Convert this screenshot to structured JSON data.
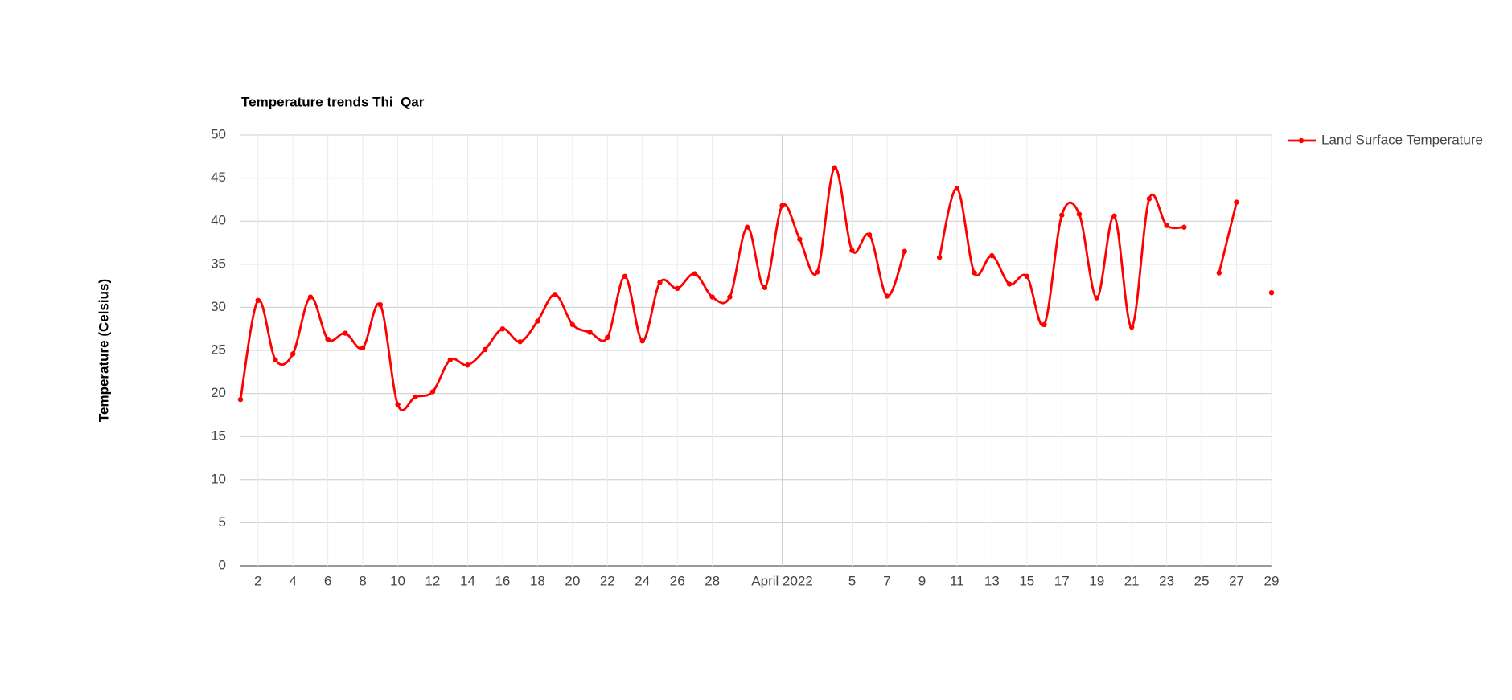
{
  "chart_data": {
    "type": "line",
    "title": "Temperature trends Thi_Qar",
    "y_label": "Temperature (Celsius)",
    "x": [
      "2022-03-01",
      "2022-03-02",
      "2022-03-03",
      "2022-03-04",
      "2022-03-05",
      "2022-03-06",
      "2022-03-07",
      "2022-03-08",
      "2022-03-09",
      "2022-03-10",
      "2022-03-11",
      "2022-03-12",
      "2022-03-13",
      "2022-03-14",
      "2022-03-15",
      "2022-03-16",
      "2022-03-17",
      "2022-03-18",
      "2022-03-19",
      "2022-03-20",
      "2022-03-21",
      "2022-03-22",
      "2022-03-23",
      "2022-03-24",
      "2022-03-25",
      "2022-03-26",
      "2022-03-27",
      "2022-03-28",
      "2022-03-29",
      "2022-03-30",
      "2022-03-31",
      "2022-04-01",
      "2022-04-02",
      "2022-04-03",
      "2022-04-04",
      "2022-04-05",
      "2022-04-06",
      "2022-04-07",
      "2022-04-08",
      "2022-04-09",
      "2022-04-10",
      "2022-04-11",
      "2022-04-12",
      "2022-04-13",
      "2022-04-14",
      "2022-04-15",
      "2022-04-16",
      "2022-04-17",
      "2022-04-18",
      "2022-04-19",
      "2022-04-20",
      "2022-04-21",
      "2022-04-22",
      "2022-04-23",
      "2022-04-24",
      "2022-04-25",
      "2022-04-26",
      "2022-04-27",
      "2022-04-28",
      "2022-04-29"
    ],
    "series": [
      {
        "name": "Land Surface Temperature",
        "color": "#ff0000",
        "values": [
          19.3,
          30.8,
          23.9,
          24.6,
          31.2,
          26.3,
          27.0,
          25.3,
          30.3,
          18.7,
          19.6,
          20.2,
          23.9,
          23.3,
          25.1,
          27.5,
          26.0,
          28.4,
          31.5,
          28.0,
          27.1,
          26.5,
          33.6,
          26.1,
          32.9,
          32.2,
          33.9,
          31.2,
          31.2,
          39.3,
          32.3,
          41.8,
          37.9,
          34.1,
          46.2,
          36.6,
          38.4,
          31.3,
          36.5,
          null,
          35.8,
          43.8,
          34.0,
          36.0,
          32.7,
          33.6,
          28.0,
          40.7,
          40.8,
          31.1,
          40.6,
          27.7,
          42.6,
          39.5,
          39.3,
          null,
          34.0,
          42.2,
          null,
          31.7
        ]
      }
    ],
    "xlim": [
      "2022-03-01",
      "2022-04-29"
    ],
    "xticks": [
      {
        "value": "2022-03-02",
        "label": "2"
      },
      {
        "value": "2022-03-04",
        "label": "4"
      },
      {
        "value": "2022-03-06",
        "label": "6"
      },
      {
        "value": "2022-03-08",
        "label": "8"
      },
      {
        "value": "2022-03-10",
        "label": "10"
      },
      {
        "value": "2022-03-12",
        "label": "12"
      },
      {
        "value": "2022-03-14",
        "label": "14"
      },
      {
        "value": "2022-03-16",
        "label": "16"
      },
      {
        "value": "2022-03-18",
        "label": "18"
      },
      {
        "value": "2022-03-20",
        "label": "20"
      },
      {
        "value": "2022-03-22",
        "label": "22"
      },
      {
        "value": "2022-03-24",
        "label": "24"
      },
      {
        "value": "2022-03-26",
        "label": "26"
      },
      {
        "value": "2022-03-28",
        "label": "28"
      },
      {
        "value": "2022-04-01",
        "label": "April 2022"
      },
      {
        "value": "2022-04-05",
        "label": "5"
      },
      {
        "value": "2022-04-07",
        "label": "7"
      },
      {
        "value": "2022-04-09",
        "label": "9"
      },
      {
        "value": "2022-04-11",
        "label": "11"
      },
      {
        "value": "2022-04-13",
        "label": "13"
      },
      {
        "value": "2022-04-15",
        "label": "15"
      },
      {
        "value": "2022-04-17",
        "label": "17"
      },
      {
        "value": "2022-04-19",
        "label": "19"
      },
      {
        "value": "2022-04-21",
        "label": "21"
      },
      {
        "value": "2022-04-23",
        "label": "23"
      },
      {
        "value": "2022-04-25",
        "label": "25"
      },
      {
        "value": "2022-04-27",
        "label": "27"
      },
      {
        "value": "2022-04-29",
        "label": "29"
      }
    ],
    "ylim": [
      0,
      50
    ],
    "yticks": [
      0,
      5,
      10,
      15,
      20,
      25,
      30,
      35,
      40,
      45,
      50
    ],
    "grid": true,
    "legend": "right"
  }
}
